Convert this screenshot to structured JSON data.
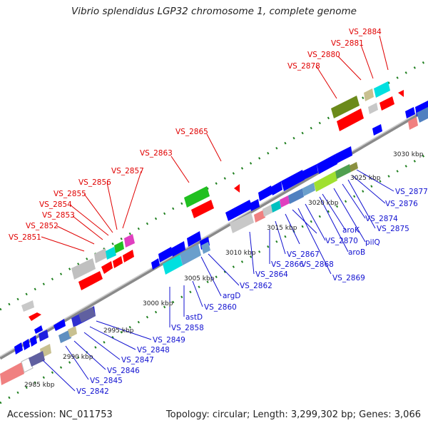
{
  "title": "Vibrio splendidus LGP32 chromosome 1, complete genome",
  "footer": {
    "accession": "Accession: NC_011753",
    "summary": "Topology: circular; Length: 3,299,302 bp; Genes: 3,066"
  },
  "ticks": [
    "2985 kbp",
    "2990 kbp",
    "2995 kbp",
    "3000 kbp",
    "3005 kbp",
    "3010 kbp",
    "3015 kbp",
    "3020 kbp",
    "3025 kbp",
    "3030 kbp"
  ],
  "top_labels": [
    "VS_2851",
    "VS_2852",
    "VS_2853",
    "VS_2854",
    "VS_2855",
    "VS_2856",
    "VS_2857",
    "VS_2863",
    "VS_2865",
    "VS_2878",
    "VS_2880",
    "VS_2881",
    "VS_2884"
  ],
  "bottom_labels": [
    "VS_2842",
    "VS_2845",
    "VS_2846",
    "VS_2847",
    "VS_2848",
    "VS_2849",
    "VS_2858",
    "astD",
    "VS_2860",
    "argD",
    "VS_2862",
    "VS_2864",
    "VS_2866",
    "VS_2867",
    "VS_2868",
    "VS_2869",
    "VS_2870",
    "aroB",
    "aroK",
    "pilQ",
    "VS_2874",
    "VS_2875",
    "VS_2876",
    "VS_2877"
  ],
  "colors": {
    "forward_cds": "#ff0000",
    "reverse_cds": "#0000ff",
    "axis": "#909090",
    "dots": "#208020"
  }
}
